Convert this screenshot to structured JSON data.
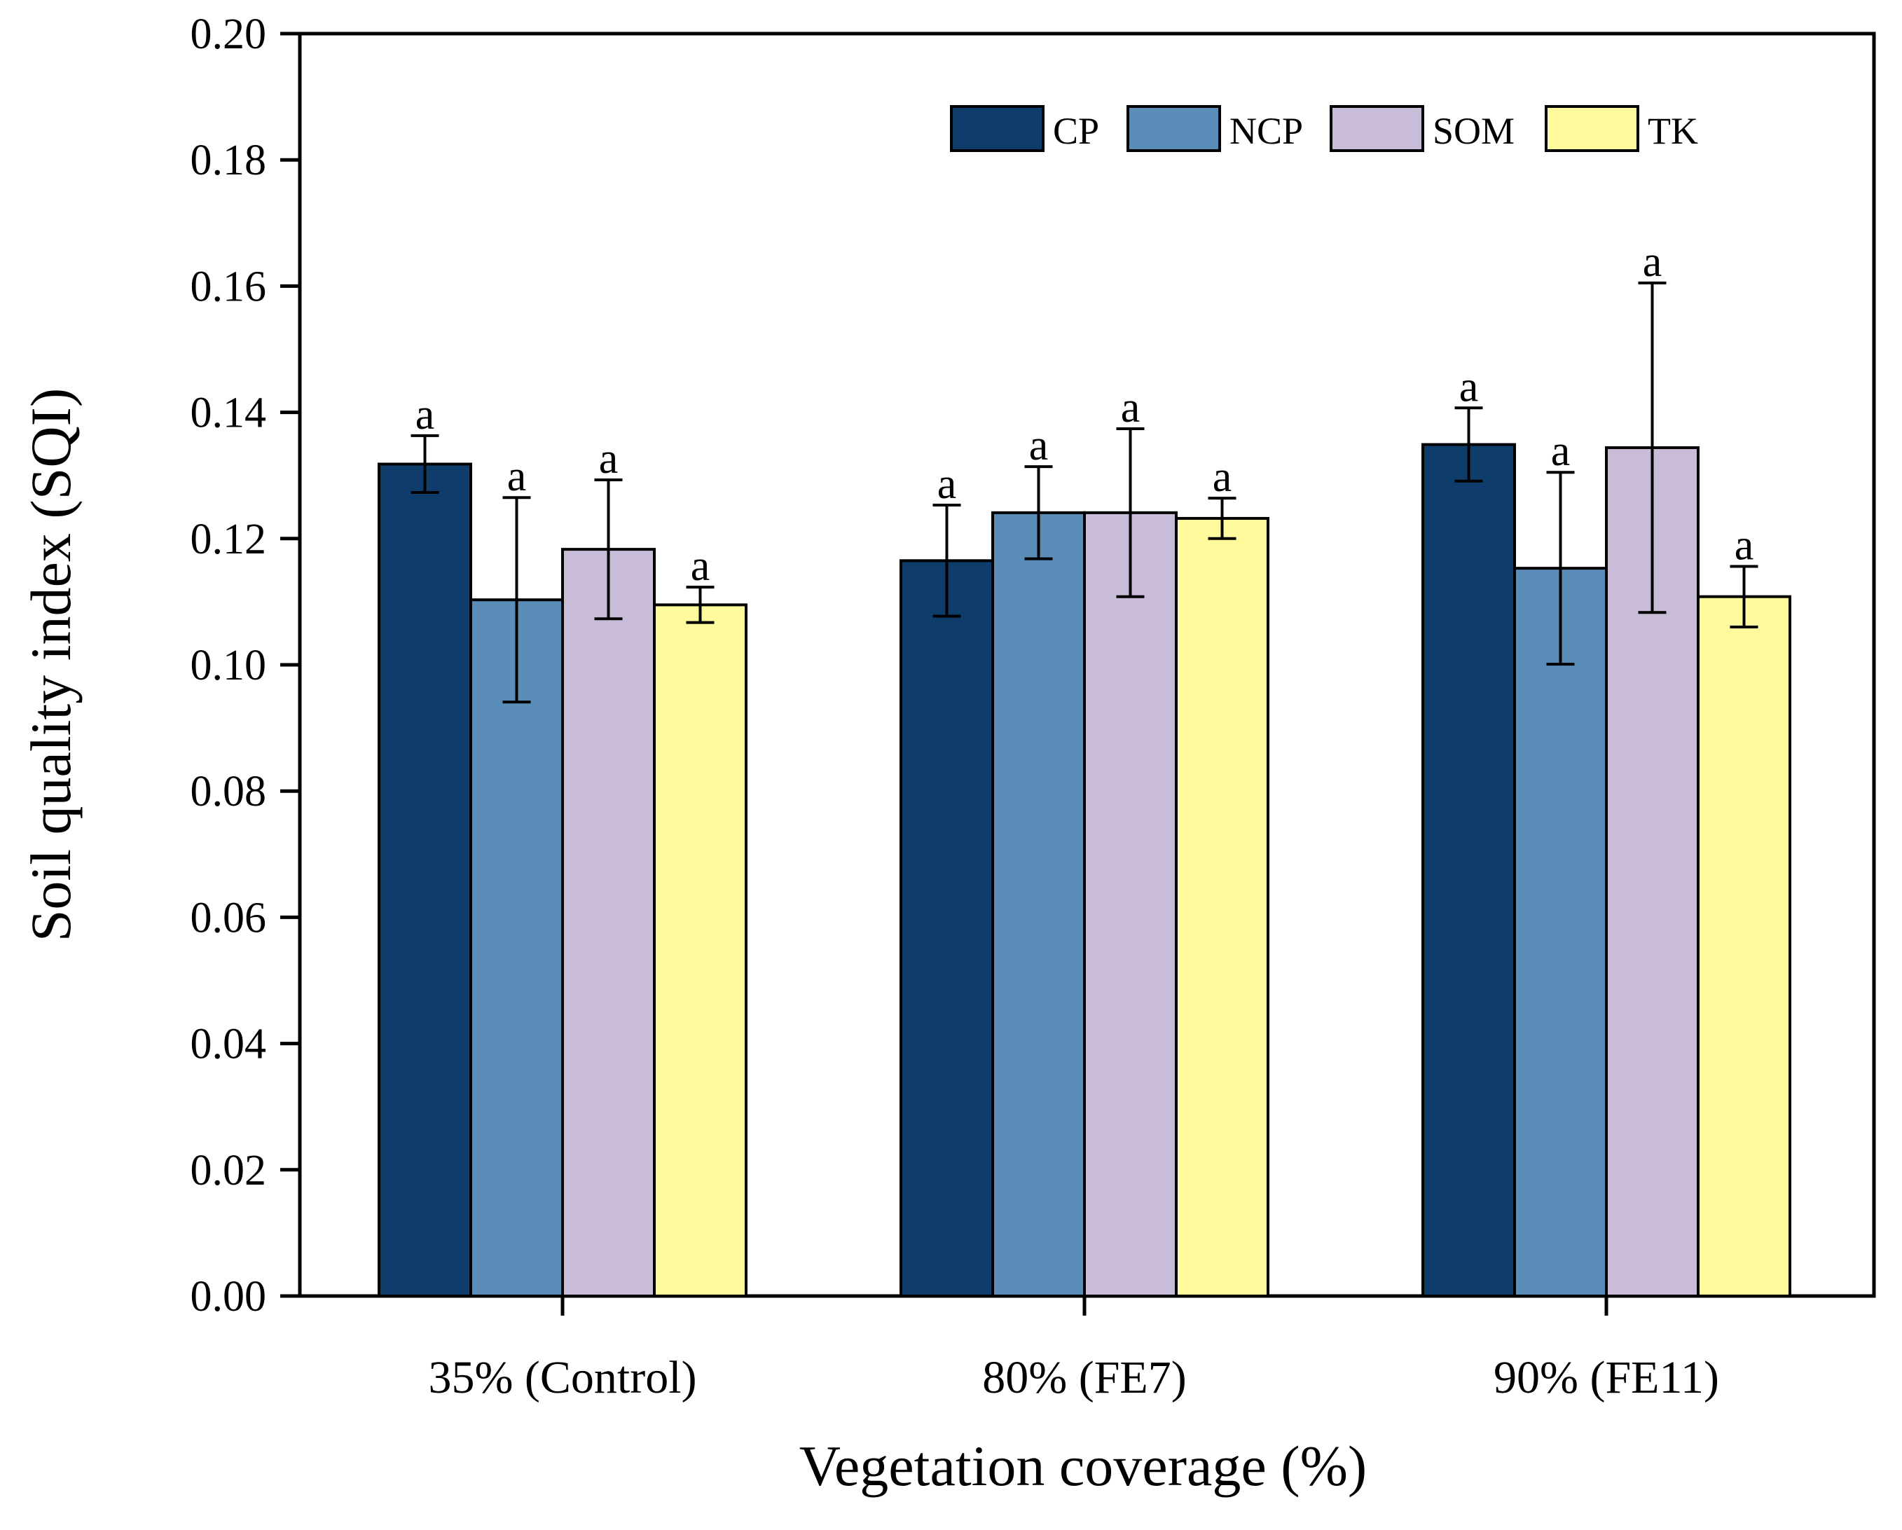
{
  "chart_data": {
    "type": "bar",
    "title": "",
    "xlabel": "Vegetation coverage (%)",
    "ylabel": "Soil quality index (SQI)",
    "ylim": [
      0,
      0.2
    ],
    "yticks": [
      "0.00",
      "0.02",
      "0.04",
      "0.06",
      "0.08",
      "0.10",
      "0.12",
      "0.14",
      "0.16",
      "0.18",
      "0.20"
    ],
    "categories": [
      "35% (Control)",
      "80% (FE7)",
      "90% (FE11)"
    ],
    "legend_position": "top-right",
    "series": [
      {
        "name": "CP",
        "color": "#0f3d6b",
        "values": [
          0.1318,
          0.1165,
          0.1349
        ],
        "errors": [
          0.0045,
          0.0088,
          0.0058
        ],
        "labels": [
          "a",
          "a",
          "a"
        ]
      },
      {
        "name": "NCP",
        "color": "#5a8db8",
        "values": [
          0.1103,
          0.1241,
          0.1153
        ],
        "errors": [
          0.0162,
          0.0073,
          0.0152
        ],
        "labels": [
          "a",
          "a",
          "a"
        ]
      },
      {
        "name": "SOM",
        "color": "#c9bcd8",
        "values": [
          0.1183,
          0.1241,
          0.1344
        ],
        "errors": [
          0.011,
          0.0133,
          0.0261
        ],
        "labels": [
          "a",
          "a",
          "a"
        ]
      },
      {
        "name": "TK",
        "color": "#fffb9c",
        "values": [
          0.1095,
          0.1232,
          0.1108
        ],
        "errors": [
          0.0028,
          0.0032,
          0.0048
        ],
        "labels": [
          "a",
          "a",
          "a"
        ]
      }
    ]
  }
}
